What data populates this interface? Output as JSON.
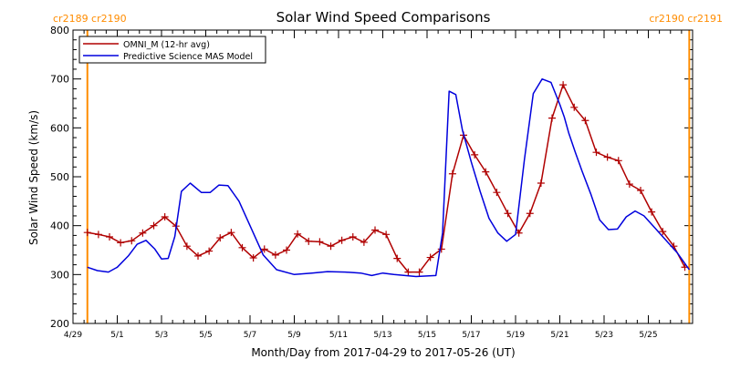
{
  "colors": {
    "omni": "#b00000",
    "mas": "#0000dd",
    "rotation": "#ff8c00",
    "axis": "#000000",
    "background": "#ffffff"
  },
  "rotation_labels": {
    "left": "cr2189 cr2190",
    "right": "cr2190 cr2191"
  },
  "chart_data": {
    "type": "line",
    "title": "Solar Wind Speed Comparisons",
    "xlabel": "Month/Day from 2017-04-29 to 2017-05-26 (UT)",
    "ylabel": "Solar Wind Speed (km/s)",
    "x_unit": "days since 2017-04-29 00:00 UT",
    "xlim": [
      0,
      28
    ],
    "ylim": [
      200,
      800
    ],
    "y_ticks": [
      200,
      300,
      400,
      500,
      600,
      700,
      800
    ],
    "x_ticks": [
      {
        "day": 0,
        "label": "4/29"
      },
      {
        "day": 2,
        "label": "5/1"
      },
      {
        "day": 4,
        "label": "5/3"
      },
      {
        "day": 6,
        "label": "5/5"
      },
      {
        "day": 8,
        "label": "5/7"
      },
      {
        "day": 10,
        "label": "5/9"
      },
      {
        "day": 12,
        "label": "5/11"
      },
      {
        "day": 14,
        "label": "5/13"
      },
      {
        "day": 16,
        "label": "5/15"
      },
      {
        "day": 18,
        "label": "5/17"
      },
      {
        "day": 20,
        "label": "5/19"
      },
      {
        "day": 22,
        "label": "5/21"
      },
      {
        "day": 24,
        "label": "5/23"
      },
      {
        "day": 26,
        "label": "5/25"
      }
    ],
    "rotation_boundaries": [
      0.65,
      27.85
    ],
    "legend": {
      "placement": "top-left"
    },
    "series": [
      {
        "name": "OMNI_M (12-hr avg)",
        "color": "#b00000",
        "marker": "plus",
        "x": [
          0.65,
          1.15,
          1.65,
          2.15,
          2.65,
          3.15,
          3.65,
          4.15,
          4.65,
          5.15,
          5.65,
          6.15,
          6.65,
          7.15,
          7.65,
          8.15,
          8.65,
          9.15,
          9.65,
          10.15,
          10.65,
          11.15,
          11.65,
          12.15,
          12.65,
          13.15,
          13.65,
          14.15,
          14.65,
          15.15,
          15.65,
          16.15,
          16.65,
          17.15,
          17.65,
          18.15,
          18.65,
          19.15,
          19.65,
          20.15,
          20.65,
          21.15,
          21.65,
          22.15,
          22.65,
          23.15,
          23.65,
          24.15,
          24.65,
          25.15,
          25.65,
          26.15,
          26.65,
          27.15,
          27.65
        ],
        "y": [
          386,
          382,
          377,
          365,
          369,
          385,
          400,
          418,
          399,
          358,
          338,
          348,
          375,
          386,
          355,
          334,
          352,
          340,
          350,
          383,
          368,
          367,
          358,
          370,
          377,
          366,
          391,
          382,
          333,
          305,
          305,
          335,
          352,
          506,
          585,
          545,
          510,
          468,
          425,
          385,
          425,
          487,
          620,
          688,
          642,
          615,
          550,
          540,
          533,
          485,
          472,
          428,
          388,
          358,
          315
        ]
      },
      {
        "name": "Predictive Science MAS Model",
        "color": "#0000dd",
        "marker": "none",
        "x": [
          0.65,
          1.1,
          1.6,
          2.0,
          2.5,
          2.9,
          3.3,
          3.7,
          4.0,
          4.3,
          4.6,
          4.9,
          5.3,
          5.8,
          6.2,
          6.6,
          7.0,
          7.5,
          8.0,
          8.6,
          9.2,
          10.0,
          10.8,
          11.5,
          12.3,
          13.0,
          13.5,
          14.0,
          14.5,
          15.0,
          15.5,
          16.0,
          16.4,
          16.7,
          17.0,
          17.3,
          17.6,
          18.0,
          18.4,
          18.8,
          19.2,
          19.6,
          20.0,
          20.4,
          20.8,
          21.2,
          21.6,
          22.0,
          22.2,
          22.4,
          22.7,
          23.0,
          23.4,
          23.8,
          24.2,
          24.6,
          25.0,
          25.4,
          25.8,
          26.3,
          26.8,
          27.3,
          27.85
        ],
        "y": [
          315,
          308,
          305,
          315,
          338,
          362,
          370,
          352,
          332,
          333,
          378,
          470,
          487,
          468,
          468,
          483,
          482,
          450,
          400,
          340,
          310,
          300,
          303,
          306,
          305,
          303,
          298,
          303,
          300,
          298,
          296,
          297,
          298,
          385,
          675,
          668,
          595,
          530,
          470,
          415,
          385,
          368,
          382,
          535,
          670,
          700,
          693,
          648,
          622,
          590,
          550,
          512,
          465,
          412,
          392,
          393,
          418,
          430,
          420,
          395,
          370,
          345,
          310
        ]
      }
    ]
  }
}
